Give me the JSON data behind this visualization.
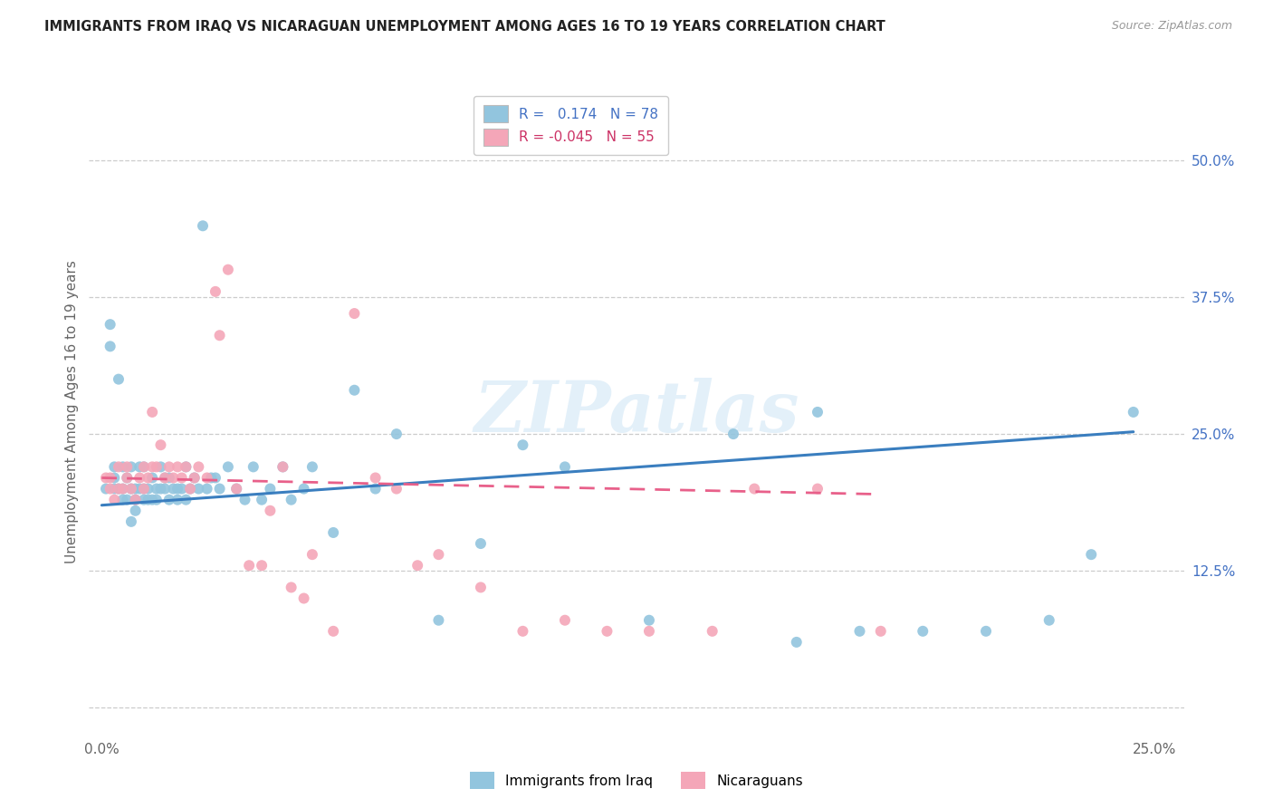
{
  "title": "IMMIGRANTS FROM IRAQ VS NICARAGUAN UNEMPLOYMENT AMONG AGES 16 TO 19 YEARS CORRELATION CHART",
  "source": "Source: ZipAtlas.com",
  "ylabel": "Unemployment Among Ages 16 to 19 years",
  "xlim": [
    0.0,
    0.25
  ],
  "ylim": [
    0.0,
    0.55
  ],
  "x_tick_positions": [
    0.0,
    0.05,
    0.1,
    0.15,
    0.2,
    0.25
  ],
  "x_tick_labels": [
    "0.0%",
    "",
    "",
    "",
    "",
    "25.0%"
  ],
  "y_tick_positions": [
    0.0,
    0.125,
    0.25,
    0.375,
    0.5
  ],
  "y_tick_labels": [
    "",
    "12.5%",
    "25.0%",
    "37.5%",
    "50.0%"
  ],
  "blue_color": "#92c5de",
  "pink_color": "#f4a6b8",
  "blue_line_color": "#3a7ebf",
  "pink_line_color": "#e8608a",
  "watermark": "ZIPatlas",
  "iraq_x": [
    0.001,
    0.002,
    0.002,
    0.003,
    0.003,
    0.003,
    0.004,
    0.004,
    0.005,
    0.005,
    0.005,
    0.006,
    0.006,
    0.007,
    0.007,
    0.007,
    0.008,
    0.008,
    0.008,
    0.009,
    0.009,
    0.01,
    0.01,
    0.01,
    0.011,
    0.011,
    0.012,
    0.012,
    0.013,
    0.013,
    0.014,
    0.014,
    0.015,
    0.015,
    0.016,
    0.016,
    0.017,
    0.018,
    0.018,
    0.019,
    0.02,
    0.02,
    0.021,
    0.022,
    0.023,
    0.024,
    0.025,
    0.026,
    0.027,
    0.028,
    0.03,
    0.032,
    0.034,
    0.036,
    0.038,
    0.04,
    0.043,
    0.045,
    0.048,
    0.05,
    0.055,
    0.06,
    0.065,
    0.07,
    0.08,
    0.09,
    0.1,
    0.11,
    0.13,
    0.15,
    0.165,
    0.17,
    0.18,
    0.195,
    0.21,
    0.225,
    0.235,
    0.245
  ],
  "iraq_y": [
    0.2,
    0.33,
    0.35,
    0.2,
    0.21,
    0.22,
    0.3,
    0.2,
    0.2,
    0.22,
    0.19,
    0.19,
    0.21,
    0.2,
    0.22,
    0.17,
    0.2,
    0.19,
    0.18,
    0.22,
    0.2,
    0.2,
    0.22,
    0.19,
    0.2,
    0.19,
    0.21,
    0.19,
    0.2,
    0.19,
    0.2,
    0.22,
    0.21,
    0.2,
    0.21,
    0.19,
    0.2,
    0.2,
    0.19,
    0.2,
    0.22,
    0.19,
    0.2,
    0.21,
    0.2,
    0.44,
    0.2,
    0.21,
    0.21,
    0.2,
    0.22,
    0.2,
    0.19,
    0.22,
    0.19,
    0.2,
    0.22,
    0.19,
    0.2,
    0.22,
    0.16,
    0.29,
    0.2,
    0.25,
    0.08,
    0.15,
    0.24,
    0.22,
    0.08,
    0.25,
    0.06,
    0.27,
    0.07,
    0.07,
    0.07,
    0.08,
    0.14,
    0.27
  ],
  "nica_x": [
    0.001,
    0.002,
    0.002,
    0.003,
    0.004,
    0.004,
    0.005,
    0.006,
    0.006,
    0.007,
    0.008,
    0.009,
    0.01,
    0.01,
    0.011,
    0.012,
    0.012,
    0.013,
    0.014,
    0.015,
    0.016,
    0.017,
    0.018,
    0.019,
    0.02,
    0.021,
    0.022,
    0.023,
    0.025,
    0.027,
    0.028,
    0.03,
    0.032,
    0.035,
    0.038,
    0.04,
    0.043,
    0.045,
    0.048,
    0.05,
    0.055,
    0.06,
    0.065,
    0.07,
    0.075,
    0.08,
    0.09,
    0.1,
    0.11,
    0.12,
    0.13,
    0.145,
    0.155,
    0.17,
    0.185
  ],
  "nica_y": [
    0.21,
    0.2,
    0.21,
    0.19,
    0.22,
    0.2,
    0.2,
    0.21,
    0.22,
    0.2,
    0.19,
    0.21,
    0.22,
    0.2,
    0.21,
    0.27,
    0.22,
    0.22,
    0.24,
    0.21,
    0.22,
    0.21,
    0.22,
    0.21,
    0.22,
    0.2,
    0.21,
    0.22,
    0.21,
    0.38,
    0.34,
    0.4,
    0.2,
    0.13,
    0.13,
    0.18,
    0.22,
    0.11,
    0.1,
    0.14,
    0.07,
    0.36,
    0.21,
    0.2,
    0.13,
    0.14,
    0.11,
    0.07,
    0.08,
    0.07,
    0.07,
    0.07,
    0.2,
    0.2,
    0.07
  ],
  "blue_line_x0": 0.0,
  "blue_line_x1": 0.245,
  "blue_line_y0": 0.185,
  "blue_line_y1": 0.252,
  "pink_line_x0": 0.0,
  "pink_line_x1": 0.185,
  "pink_line_y0": 0.21,
  "pink_line_y1": 0.195
}
